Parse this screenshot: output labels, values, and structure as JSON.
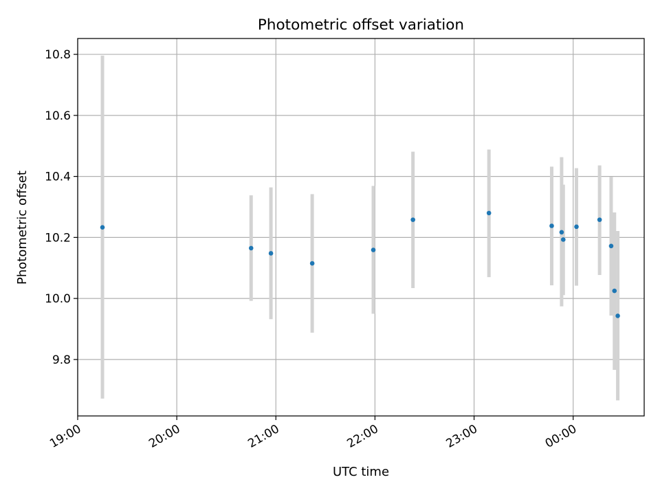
{
  "chart_data": {
    "type": "scatter",
    "title": "Photometric offset variation",
    "xlabel": "UTC time",
    "ylabel": "Photometric offset",
    "grid": true,
    "xlim": [
      "19:00",
      "00:43"
    ],
    "ylim": [
      9.615,
      10.852
    ],
    "x_ticks": [
      "19:00",
      "20:00",
      "21:00",
      "22:00",
      "23:00",
      "00:00"
    ],
    "y_ticks": [
      "9.8",
      "10.0",
      "10.2",
      "10.4",
      "10.6",
      "10.8"
    ],
    "point_color": "#1f77b4",
    "errorbar_color": "#d3d3d3",
    "points": [
      {
        "x": "19:15",
        "y": 10.233,
        "yerr_low": 9.672,
        "yerr_high": 10.796
      },
      {
        "x": "20:45",
        "y": 10.165,
        "yerr_low": 9.992,
        "yerr_high": 10.338
      },
      {
        "x": "20:57",
        "y": 10.148,
        "yerr_low": 9.932,
        "yerr_high": 10.364
      },
      {
        "x": "21:22",
        "y": 10.115,
        "yerr_low": 9.888,
        "yerr_high": 10.342
      },
      {
        "x": "21:59",
        "y": 10.159,
        "yerr_low": 9.95,
        "yerr_high": 10.369
      },
      {
        "x": "22:23",
        "y": 10.258,
        "yerr_low": 10.034,
        "yerr_high": 10.481
      },
      {
        "x": "23:09",
        "y": 10.28,
        "yerr_low": 10.07,
        "yerr_high": 10.488
      },
      {
        "x": "23:47",
        "y": 10.238,
        "yerr_low": 10.043,
        "yerr_high": 10.432
      },
      {
        "x": "23:53",
        "y": 10.217,
        "yerr_low": 9.974,
        "yerr_high": 10.463
      },
      {
        "x": "23:54",
        "y": 10.193,
        "yerr_low": 10.011,
        "yerr_high": 10.373
      },
      {
        "x": "00:02",
        "y": 10.235,
        "yerr_low": 10.042,
        "yerr_high": 10.427
      },
      {
        "x": "00:16",
        "y": 10.258,
        "yerr_low": 10.077,
        "yerr_high": 10.436
      },
      {
        "x": "00:23",
        "y": 10.172,
        "yerr_low": 9.944,
        "yerr_high": 10.399
      },
      {
        "x": "00:25",
        "y": 10.025,
        "yerr_low": 9.766,
        "yerr_high": 10.282
      },
      {
        "x": "00:27",
        "y": 9.943,
        "yerr_low": 9.666,
        "yerr_high": 10.221
      }
    ]
  }
}
